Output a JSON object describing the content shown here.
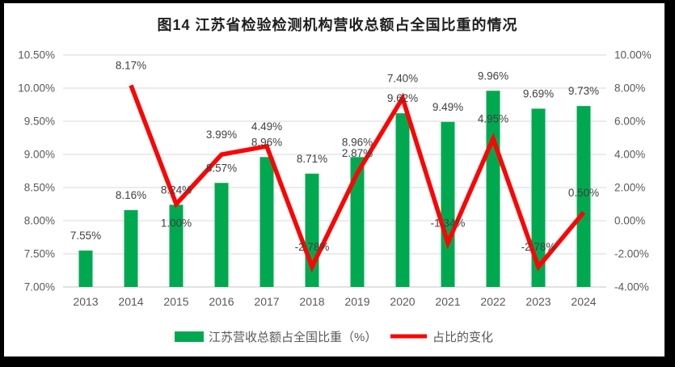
{
  "frame": {
    "border_color": "#000000",
    "background": "#ffffff"
  },
  "chart_data": {
    "type": "bar+line",
    "title": "图14 江苏省检验检测机构营收总额占全国比重的情况",
    "categories": [
      "2013",
      "2014",
      "2015",
      "2016",
      "2017",
      "2018",
      "2019",
      "2020",
      "2021",
      "2022",
      "2023",
      "2024"
    ],
    "series": [
      {
        "name": "江苏营收总额占全国比重（%）",
        "type": "bar",
        "axis": "left",
        "color": "#00A950",
        "values": [
          7.55,
          8.16,
          8.24,
          8.57,
          8.96,
          8.71,
          8.96,
          9.62,
          9.49,
          9.96,
          9.69,
          9.73
        ],
        "labels": [
          "7.55%",
          "8.16%",
          "8.24%",
          "8.57%",
          "8.96%",
          "8.71%",
          "8.96%",
          "9.62%",
          "9.49%",
          "9.96%",
          "9.69%",
          "9.73%"
        ]
      },
      {
        "name": "占比的变化",
        "type": "line",
        "axis": "right",
        "color": "#FB0505",
        "values": [
          null,
          8.17,
          1.0,
          3.99,
          4.49,
          -2.78,
          2.87,
          7.4,
          -1.34,
          4.95,
          -2.78,
          0.5
        ],
        "labels": [
          null,
          "8.17%",
          "1.00%",
          "3.99%",
          "4.49%",
          "-2.78%",
          "2.87%",
          "7.40%",
          "-1.34%",
          "4.95%",
          "-2.78%",
          "0.50%"
        ],
        "label_side": [
          null,
          "above",
          "below",
          "above",
          "above",
          "above",
          "above",
          "above",
          "above",
          "above",
          "above",
          "above"
        ]
      }
    ],
    "left_axis": {
      "min": 7.0,
      "max": 10.5,
      "step": 0.5,
      "tick_labels": [
        "10.50%",
        "10.00%",
        "9.50%",
        "9.00%",
        "8.50%",
        "8.00%",
        "7.50%",
        "7.00%"
      ]
    },
    "right_axis": {
      "min": -4.0,
      "max": 10.0,
      "step": 2.0,
      "tick_labels": [
        "10.00%",
        "8.00%",
        "6.00%",
        "4.00%",
        "2.00%",
        "0.00%",
        "-2.00%",
        "-4.00%"
      ]
    },
    "grid": true,
    "legend_position": "bottom",
    "colors": {
      "grid": "#D9D9D9",
      "baseline": "#C6C6C6",
      "axis_text": "#595959",
      "label_text": "#404040",
      "title_text": "#1F1F1F"
    }
  }
}
